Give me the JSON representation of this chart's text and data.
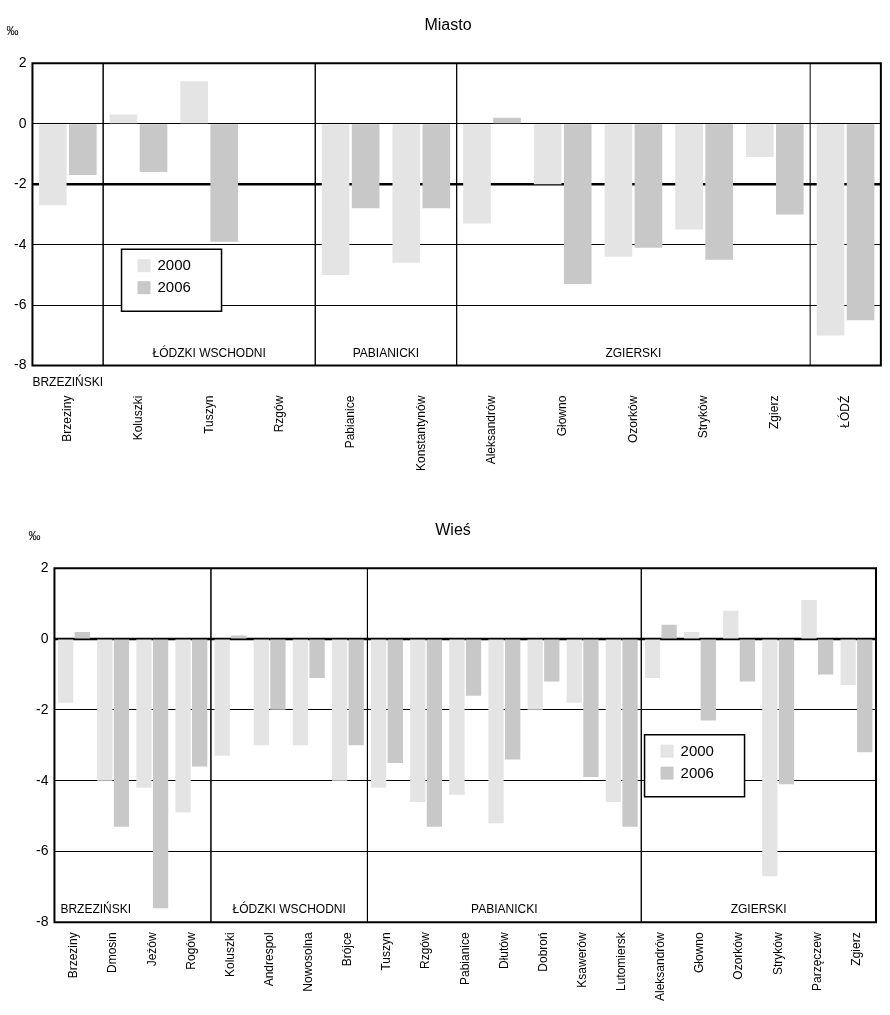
{
  "chart_data": [
    {
      "type": "bar",
      "title": "Miasto",
      "ylabel": "‰",
      "categories": [
        "Brzeziny",
        "Koluszki",
        "Tuszyn",
        "Rzgów",
        "Pabianice",
        "Konstantynów",
        "Aleksandrów",
        "Głowno",
        "Ozorków",
        "Stryków",
        "Zgierz",
        "ŁÓDŹ"
      ],
      "series": [
        {
          "name": "2000",
          "color": "#e4e4e4",
          "values": [
            -2.7,
            0.3,
            1.4,
            null,
            -5.0,
            -4.6,
            -3.3,
            -2.0,
            -4.4,
            -3.5,
            -1.1,
            -7.0
          ]
        },
        {
          "name": "2006",
          "color": "#c8c8c8",
          "values": [
            -1.7,
            -1.6,
            -3.9,
            null,
            -2.8,
            -2.8,
            0.2,
            -5.3,
            -4.1,
            -4.5,
            -3.0,
            -6.5
          ]
        }
      ],
      "ylim": [
        -8,
        2
      ],
      "yticks": [
        -8,
        -6,
        -4,
        -2,
        0,
        2
      ],
      "grid": "y",
      "legend": "bottom left",
      "ref_lines": [
        {
          "axis": "y",
          "value": -2
        }
      ],
      "annotations": [
        "BRZEZIŃSKI",
        "ŁÓDZKI WSCHODNI",
        "PABIANICKI",
        "ZGIERSKI"
      ]
    },
    {
      "type": "bar",
      "title": "Wieś",
      "ylabel": "‰",
      "categories": [
        "Brzeziny",
        "Dmosin",
        "Jeżów",
        "Rogów",
        "Koluszki",
        "Andrespol",
        "Nowosolna",
        "Brójce",
        "Tuszyn",
        "Rzgów",
        "Pabianice",
        "Dłutów",
        "Dobroń",
        "Ksawerów",
        "Lutomiersk",
        "Aleksandrów",
        "Głowno",
        "Ozorków",
        "Stryków",
        "Parzęczew",
        "Zgierz"
      ],
      "series": [
        {
          "name": "2000",
          "color": "#e4e4e4",
          "values": [
            -1.8,
            -4.0,
            -4.2,
            -4.9,
            -3.3,
            -3.0,
            -3.0,
            -4.0,
            -4.2,
            -4.6,
            -4.4,
            -5.2,
            -2.0,
            -1.8,
            -4.6,
            -1.1,
            0.2,
            0.8,
            -6.7,
            1.1,
            -1.3
          ]
        },
        {
          "name": "2006",
          "color": "#c8c8c8",
          "values": [
            0.2,
            -5.3,
            -7.6,
            -3.6,
            0.1,
            -2.0,
            -1.1,
            -3.0,
            -3.5,
            -5.3,
            -1.6,
            -3.4,
            -1.2,
            -3.9,
            -5.3,
            0.4,
            -2.3,
            -1.2,
            -4.1,
            -1.0,
            -3.2
          ]
        }
      ],
      "ylim": [
        -8,
        2
      ],
      "yticks": [
        -8,
        -6,
        -4,
        -2,
        0,
        2
      ],
      "grid": "y",
      "legend": "right",
      "ref_lines": [
        {
          "axis": "y",
          "value": 0
        }
      ],
      "annotations": [
        "BRZEZIŃSKI",
        "ŁÓDZKI WSCHODNI",
        "PABIANICKI",
        "ZGIERSKI"
      ]
    }
  ]
}
